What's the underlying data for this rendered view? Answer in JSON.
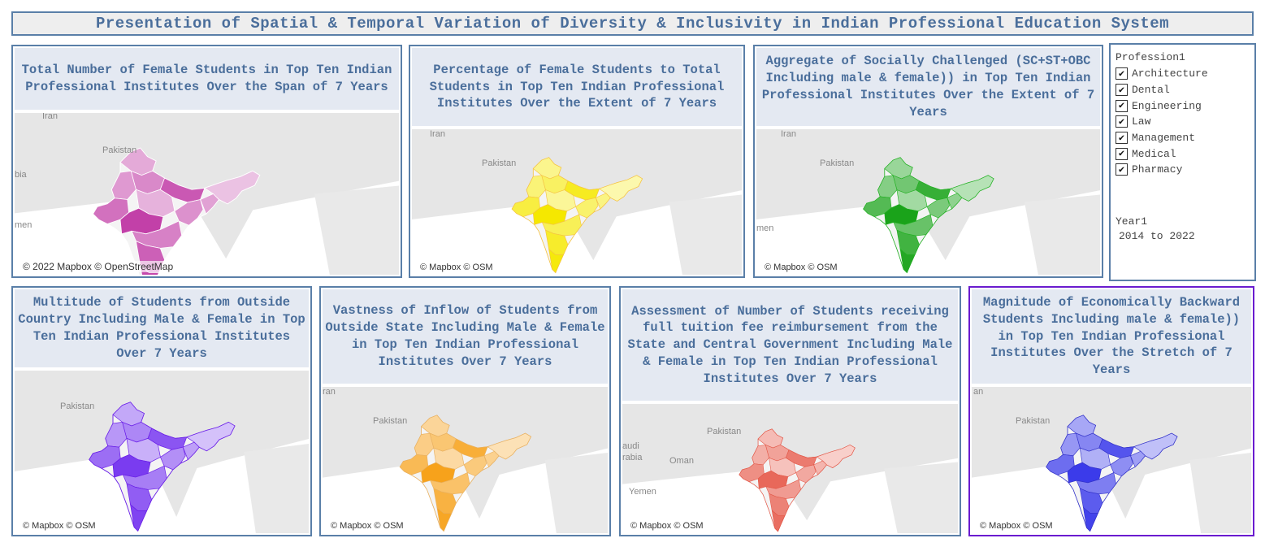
{
  "header": {
    "title": "Presentation of Spatial & Temporal Variation of Diversity & Inclusivity in Indian Professional Education System"
  },
  "panels": [
    {
      "title": "Total Number of Female Students in Top Ten Indian Professional Institutes Over the Span of 7 Years",
      "attribution": "© 2022 Mapbox © OpenStreetMap",
      "fill": "#c240a8",
      "stroke": "#ffffff"
    },
    {
      "title": "Percentage of Female Students to Total Students in Top Ten Indian Professional Institutes Over the Extent of 7 Years",
      "attribution": "© Mapbox © OSM",
      "fill": "#f5e800",
      "stroke": "#f5c242"
    },
    {
      "title": "Aggregate of Socially Challenged (SC+ST+OBC Including male & female)) in Top Ten Indian Professional Institutes Over the Extent of 7 Years",
      "attribution": "© Mapbox © OSM",
      "fill": "#1aa31a",
      "stroke": "#22b022"
    },
    {
      "title": "Multitude of Students from Outside Country Including Male & Female in Top Ten Indian Professional Institutes Over 7 Years",
      "attribution": "© Mapbox © OSM",
      "fill": "#7a3cf0",
      "stroke": "#6a1fe8"
    },
    {
      "title": "Vastness of Inflow of Students from Outside State Including Male & Female in Top Ten Indian Professional Institutes Over 7 Years",
      "attribution": "© Mapbox © OSM",
      "fill": "#f7a21b",
      "stroke": "#e8b060"
    },
    {
      "title": "Assessment of Number of Students receiving full tuition fee reimbursement from the State and Central Government Including Male & Female in Top Ten Indian Professional Institutes Over 7 Years",
      "attribution": "© Mapbox © OSM",
      "fill": "#e8685a",
      "stroke": "#e25545"
    },
    {
      "title": "Magnitude of Economically Backward Students Including male & female)) in Top Ten Indian Professional Institutes Over the Stretch of 7 Years",
      "attribution": "© Mapbox © OSM",
      "fill": "#3b3bea",
      "stroke": "#3232c8"
    }
  ],
  "map_labels": {
    "iran": "Iran",
    "pakistan": "Pakistan",
    "india": "India",
    "oman": "men",
    "oman2": "Oman",
    "saudi": "audi",
    "arabia": "rabia",
    "yemen": "Yemen",
    "bia": "bia",
    "ran": "ran",
    "an": "an"
  },
  "filter": {
    "profession_heading": "Profession1",
    "professions": [
      "Architecture",
      "Dental",
      "Engineering",
      "Law",
      "Management",
      "Medical",
      "Pharmacy"
    ],
    "check_glyph": "✔",
    "year_heading": "Year1",
    "year_value": "2014 to 2022"
  }
}
